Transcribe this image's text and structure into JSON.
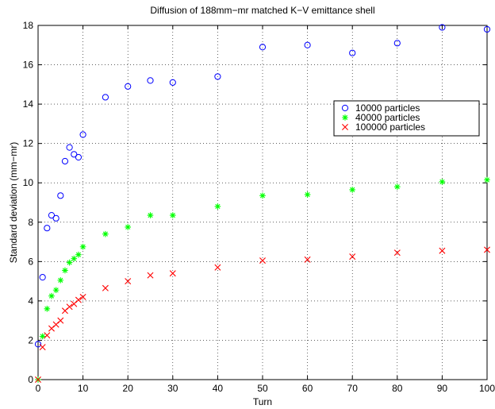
{
  "chart_data": {
    "type": "scatter",
    "title": "Diffusion of 188mm−mr matched K−V emittance shell",
    "xlabel": "Turn",
    "ylabel": "Standard deviation (mm−mr)",
    "xlim": [
      0,
      100
    ],
    "ylim": [
      0,
      18
    ],
    "xticks": [
      0,
      10,
      20,
      30,
      40,
      50,
      60,
      70,
      80,
      90,
      100
    ],
    "yticks": [
      0,
      2,
      4,
      6,
      8,
      10,
      12,
      14,
      16,
      18
    ],
    "grid": true,
    "legend_position": "upper-right",
    "series": [
      {
        "name": "10000 particles",
        "marker": "circle",
        "color": "#0000ff",
        "x": [
          0,
          1,
          2,
          3,
          4,
          5,
          6,
          7,
          8,
          9,
          10,
          15,
          20,
          25,
          30,
          40,
          50,
          60,
          70,
          80,
          90,
          100
        ],
        "y": [
          1.8,
          5.2,
          7.7,
          8.35,
          8.2,
          9.35,
          11.1,
          11.8,
          11.45,
          11.3,
          12.45,
          14.35,
          14.9,
          15.2,
          15.1,
          15.4,
          16.9,
          17.0,
          16.6,
          17.1,
          17.9,
          17.8
        ]
      },
      {
        "name": "40000 particles",
        "marker": "star",
        "color": "#00ff00",
        "x": [
          0,
          1,
          2,
          3,
          4,
          5,
          6,
          7,
          8,
          9,
          10,
          15,
          20,
          25,
          30,
          40,
          50,
          60,
          70,
          80,
          90,
          100
        ],
        "y": [
          0,
          2.2,
          3.6,
          4.25,
          4.55,
          5.05,
          5.55,
          5.95,
          6.15,
          6.35,
          6.75,
          7.4,
          7.75,
          8.35,
          8.35,
          8.8,
          9.35,
          9.4,
          9.65,
          9.8,
          10.05,
          10.15
        ]
      },
      {
        "name": "100000 particles",
        "marker": "x",
        "color": "#ff0000",
        "x": [
          0,
          1,
          2,
          3,
          4,
          5,
          6,
          7,
          8,
          9,
          10,
          15,
          20,
          25,
          30,
          40,
          50,
          60,
          70,
          80,
          90,
          100
        ],
        "y": [
          0,
          1.65,
          2.25,
          2.6,
          2.8,
          3.0,
          3.5,
          3.7,
          3.85,
          4.05,
          4.2,
          4.65,
          5.0,
          5.3,
          5.4,
          5.7,
          6.05,
          6.1,
          6.25,
          6.45,
          6.55,
          6.6
        ]
      }
    ]
  }
}
